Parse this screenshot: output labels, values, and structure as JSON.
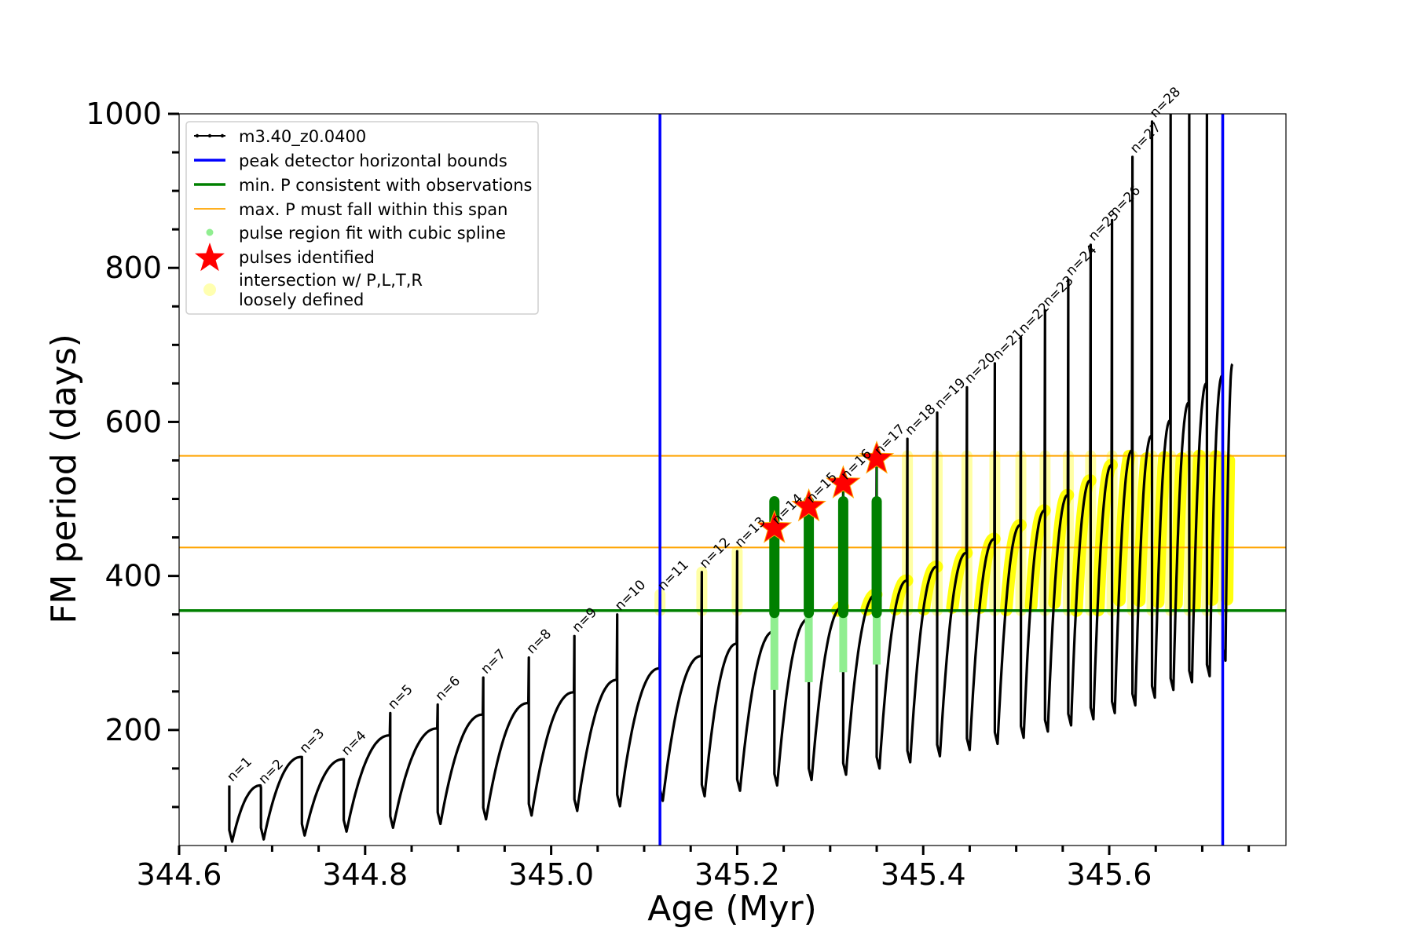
{
  "chart_data": {
    "type": "line",
    "xlabel": "Age (Myr)",
    "ylabel": "FM period (days)",
    "xlim": [
      344.6,
      345.79
    ],
    "ylim": [
      50,
      1000
    ],
    "x_ticks": [
      "344.6",
      "344.8",
      "345.0",
      "345.2",
      "345.4",
      "345.6"
    ],
    "y_ticks": [
      "200",
      "400",
      "600",
      "800",
      "1000"
    ],
    "vertical_lines": {
      "color": "#0000ff",
      "x": [
        345.117,
        345.722
      ]
    },
    "horizontal_lines": {
      "min_p": {
        "y": 355,
        "color": "#008000"
      },
      "max_p_span": {
        "y": [
          437,
          556
        ],
        "color": "#ffa500"
      }
    },
    "legend": {
      "position": "upper-left",
      "entries": [
        {
          "label": "m3.40_z0.0400",
          "style": "black-line-dots"
        },
        {
          "label": "peak detector horizontal bounds",
          "style": "blue-line"
        },
        {
          "label": "min. P consistent with observations",
          "style": "green-line"
        },
        {
          "label": "max. P must fall within this span",
          "style": "orange-line"
        },
        {
          "label": "pulse region fit with cubic spline",
          "style": "lightgreen-dot"
        },
        {
          "label": "pulses identified",
          "style": "red-star"
        },
        {
          "label": "intersection w/ P,L,T,R",
          "label2": "loosely defined",
          "style": "yellow-circle"
        }
      ]
    },
    "colors": {
      "series": "#000000",
      "spline_fit": "#90ee90",
      "identified_region": "#008000",
      "star": "#ff0000",
      "intersection": "#ffff00"
    },
    "pulses": [
      {
        "label": "n=1",
        "x": 344.654,
        "peak": 128,
        "min": 55,
        "recovery_max": 128
      },
      {
        "label": "n=2",
        "x": 344.688,
        "peak": 125,
        "min": 58,
        "recovery_max": 165
      },
      {
        "label": "n=3",
        "x": 344.732,
        "peak": 165,
        "min": 63,
        "recovery_max": 162
      },
      {
        "label": "n=4",
        "x": 344.777,
        "peak": 162,
        "min": 68,
        "recovery_max": 193
      },
      {
        "label": "n=5",
        "x": 344.827,
        "peak": 222,
        "min": 73,
        "recovery_max": 202
      },
      {
        "label": "n=6",
        "x": 344.878,
        "peak": 233,
        "min": 78,
        "recovery_max": 220
      },
      {
        "label": "n=7",
        "x": 344.927,
        "peak": 268,
        "min": 84,
        "recovery_max": 235
      },
      {
        "label": "n=8",
        "x": 344.976,
        "peak": 294,
        "min": 89,
        "recovery_max": 249
      },
      {
        "label": "n=9",
        "x": 345.025,
        "peak": 322,
        "min": 95,
        "recovery_max": 265
      },
      {
        "label": "n=10",
        "x": 345.071,
        "peak": 350,
        "min": 101,
        "recovery_max": 280
      },
      {
        "label": "n=11",
        "x": 345.117,
        "peak": 376,
        "min": 108,
        "recovery_max": 296
      },
      {
        "label": "n=12",
        "x": 345.162,
        "peak": 405,
        "min": 114,
        "recovery_max": 312
      },
      {
        "label": "n=13",
        "x": 345.2,
        "peak": 432,
        "min": 121,
        "recovery_max": 328
      },
      {
        "label": "n=14",
        "x": 345.24,
        "peak": 462,
        "min": 128,
        "recovery_max": 344
      },
      {
        "label": "n=15",
        "x": 345.277,
        "peak": 490,
        "min": 135,
        "recovery_max": 360
      },
      {
        "label": "n=16",
        "x": 345.314,
        "peak": 520,
        "min": 142,
        "recovery_max": 376
      },
      {
        "label": "n=17",
        "x": 345.35,
        "peak": 552,
        "min": 150,
        "recovery_max": 394
      },
      {
        "label": "n=18",
        "x": 345.383,
        "peak": 578,
        "min": 158,
        "recovery_max": 412
      },
      {
        "label": "n=19",
        "x": 345.415,
        "peak": 612,
        "min": 166,
        "recovery_max": 430
      },
      {
        "label": "n=20",
        "x": 345.447,
        "peak": 645,
        "min": 174,
        "recovery_max": 448
      },
      {
        "label": "n=21",
        "x": 345.477,
        "peak": 676,
        "min": 182,
        "recovery_max": 466
      },
      {
        "label": "n=22",
        "x": 345.505,
        "peak": 710,
        "min": 190,
        "recovery_max": 485
      },
      {
        "label": "n=23",
        "x": 345.531,
        "peak": 745,
        "min": 198,
        "recovery_max": 505
      },
      {
        "label": "n=24",
        "x": 345.556,
        "peak": 785,
        "min": 206,
        "recovery_max": 524
      },
      {
        "label": "n=25",
        "x": 345.58,
        "peak": 830,
        "min": 214,
        "recovery_max": 544
      },
      {
        "label": "n=26",
        "x": 345.603,
        "peak": 862,
        "min": 222,
        "recovery_max": 563
      },
      {
        "label": "n=27",
        "x": 345.625,
        "peak": 944,
        "min": 232,
        "recovery_max": 582
      },
      {
        "label": "n=28",
        "x": 345.646,
        "peak": 990,
        "min": 242,
        "recovery_max": 602
      }
    ],
    "extra_pulses": [
      {
        "x": 345.666,
        "peak": 1000,
        "min": 252,
        "recovery_max": 625
      },
      {
        "x": 345.686,
        "peak": 1000,
        "min": 262,
        "recovery_max": 650
      },
      {
        "x": 345.705,
        "peak": 1000,
        "min": 270,
        "recovery_max": 660
      },
      {
        "x": 345.722,
        "peak": 1000,
        "min": 290,
        "recovery_max": 675
      }
    ],
    "identified_pulses": [
      {
        "x": 345.24,
        "star_y": 462,
        "region": [
          352,
          497
        ],
        "spline": [
          252,
          352
        ]
      },
      {
        "x": 345.277,
        "star_y": 490,
        "region": [
          352,
          497
        ],
        "spline": [
          262,
          352
        ]
      },
      {
        "x": 345.314,
        "star_y": 520,
        "region": [
          352,
          497
        ],
        "spline": [
          275,
          352
        ]
      },
      {
        "x": 345.35,
        "star_y": 552,
        "region": [
          352,
          497
        ],
        "spline": [
          285,
          352
        ]
      }
    ]
  }
}
